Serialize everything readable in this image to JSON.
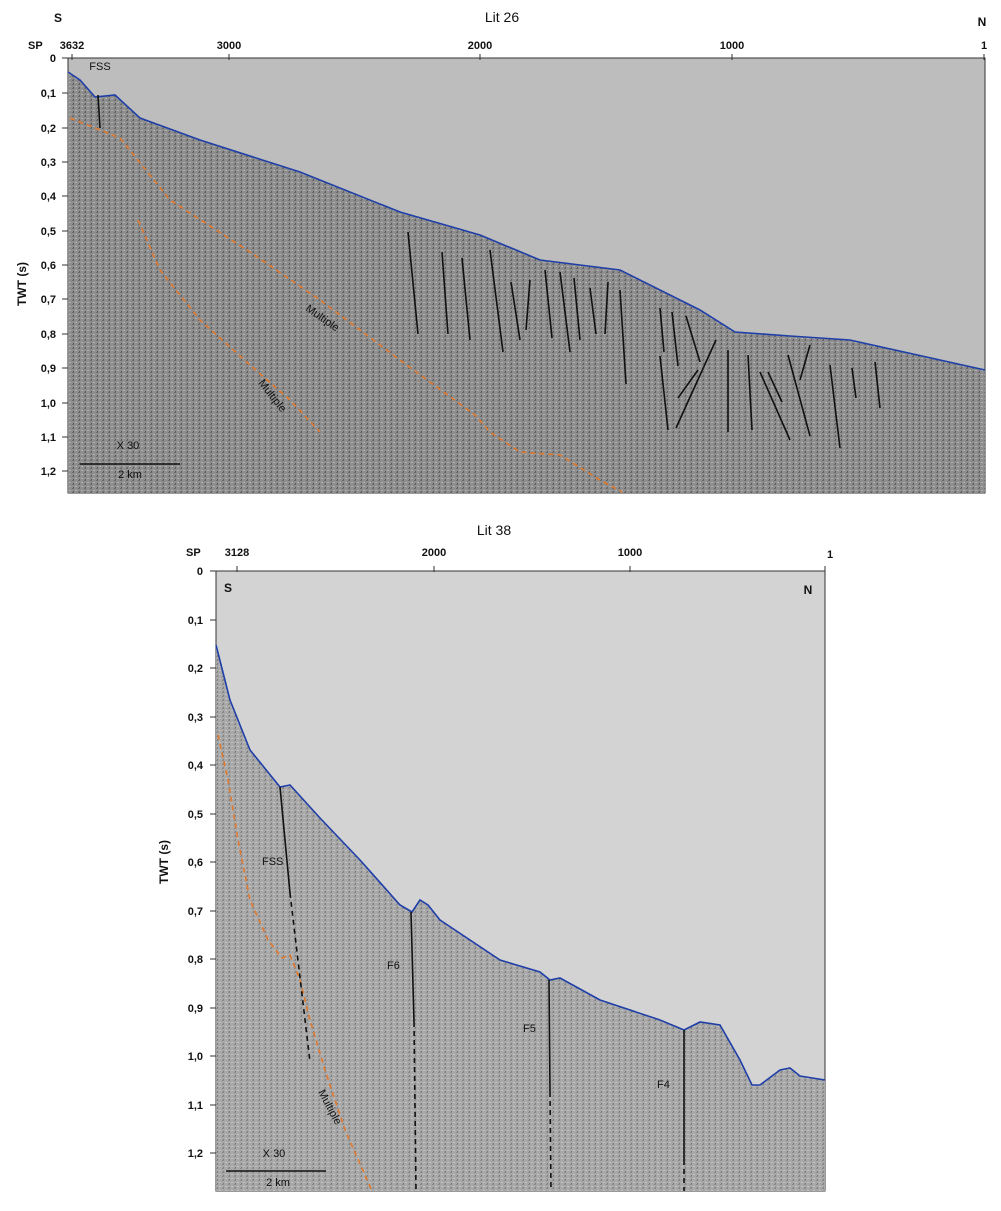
{
  "profiles": [
    {
      "title": "Lit 26",
      "sp_label": "SP",
      "dir_left": "S",
      "dir_right": "N",
      "sp_ticks": [
        "3632",
        "3000",
        "2000",
        "1000",
        "1"
      ],
      "ylabel": "TWT (s)",
      "y_ticks": [
        "0",
        "0,1",
        "0,2",
        "0,3",
        "0,4",
        "0,5",
        "0,6",
        "0,7",
        "0,8",
        "0,9",
        "1,0",
        "1,1",
        "1,2"
      ],
      "annotations": [
        "FSS",
        "Multiple",
        "Multiple"
      ],
      "scale": {
        "exaggeration": "X 30",
        "length": "2 km"
      }
    },
    {
      "title": "Lit 38",
      "sp_label": "SP",
      "dir_left": "S",
      "dir_right": "N",
      "sp_ticks": [
        "3128",
        "2000",
        "1000",
        "1"
      ],
      "ylabel": "TWT (s)",
      "y_ticks": [
        "0",
        "0,1",
        "0,2",
        "0,3",
        "0,4",
        "0,5",
        "0,6",
        "0,7",
        "0,8",
        "0,9",
        "1,0",
        "1,1",
        "1,2"
      ],
      "annotations": [
        "FSS",
        "F6",
        "F5",
        "F4",
        "Multiple"
      ],
      "scale": {
        "exaggeration": "X 30",
        "length": "2 km"
      }
    }
  ],
  "colors": {
    "seabed": "#1f3fa8",
    "multiple": "#e2782b",
    "fault": "#111111",
    "water": "#bdbdbd"
  }
}
